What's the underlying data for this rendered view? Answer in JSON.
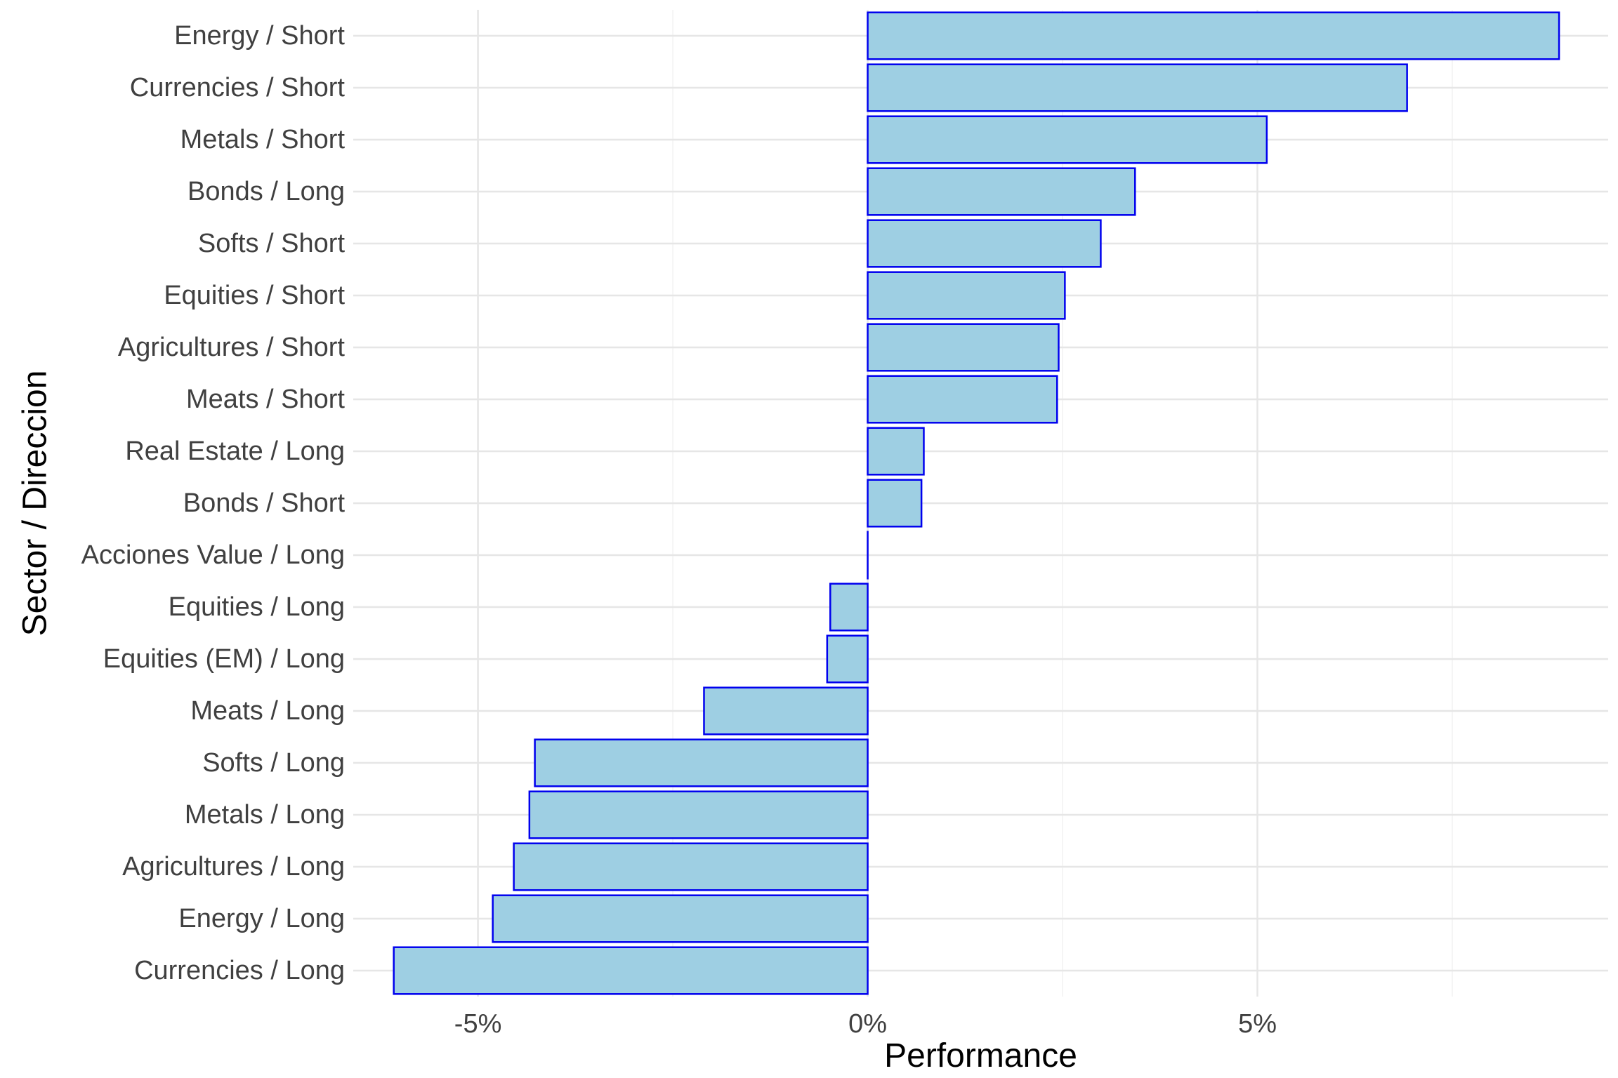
{
  "chart_data": {
    "type": "bar",
    "orientation": "horizontal",
    "title": "",
    "xlabel": "Performance",
    "ylabel": "Sector / Direccion",
    "xlim": [
      -6.6,
      9.5
    ],
    "x_ticks": [
      -5,
      0,
      5
    ],
    "x_tick_labels": [
      "-5%",
      "0%",
      "5%"
    ],
    "grid": true,
    "legend": "none",
    "categories": [
      "Energy / Short",
      "Currencies / Short",
      "Metals / Short",
      "Bonds / Long",
      "Softs / Short",
      "Equities / Short",
      "Agricultures / Short",
      "Meats / Short",
      "Real Estate / Long",
      "Bonds / Short",
      "Acciones Value / Long",
      "Equities / Long",
      "Equities (EM) / Long",
      "Meats / Long",
      "Softs / Long",
      "Metals / Long",
      "Agricultures / Long",
      "Energy / Long",
      "Currencies / Long"
    ],
    "values": [
      8.87,
      6.92,
      5.12,
      3.43,
      2.99,
      2.53,
      2.45,
      2.43,
      0.72,
      0.69,
      0.0,
      -0.48,
      -0.52,
      -2.1,
      -4.27,
      -4.34,
      -4.54,
      -4.81,
      -6.08
    ],
    "bar_fill": "#9ecfe3",
    "bar_stroke": "#0000ee"
  }
}
